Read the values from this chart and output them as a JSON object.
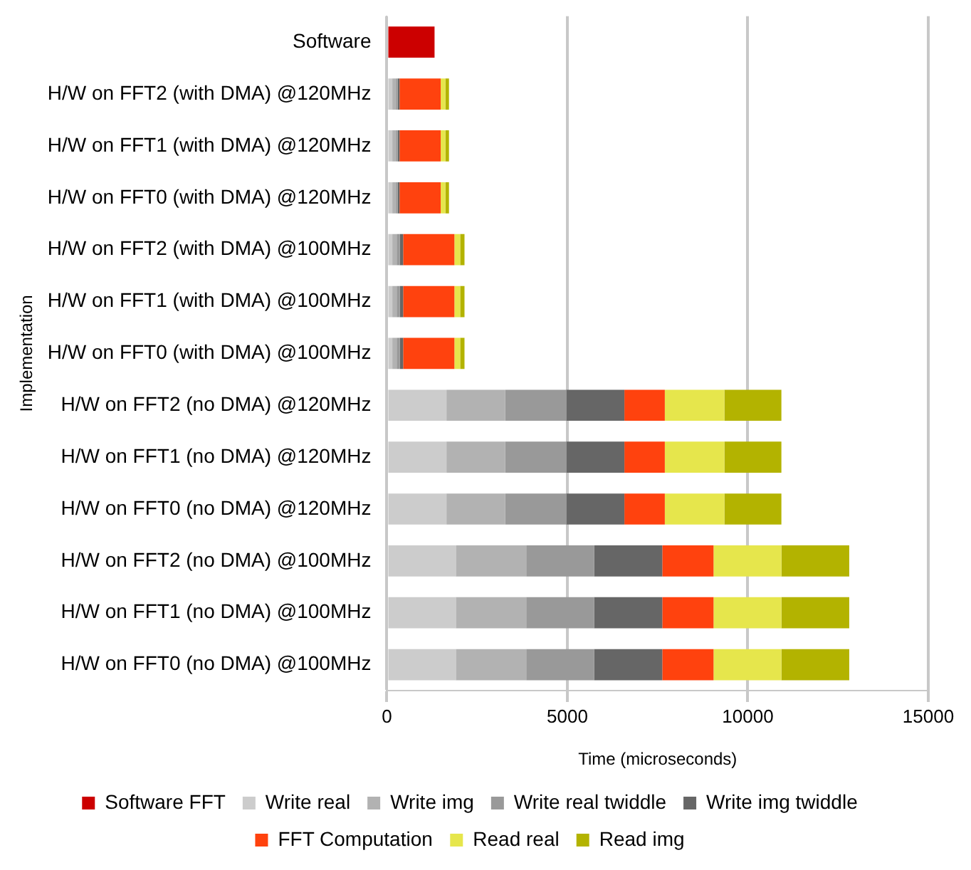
{
  "chart_data": {
    "type": "bar",
    "orientation": "horizontal",
    "stacked": true,
    "xlabel": "Time (microseconds)",
    "ylabel": "Implementation",
    "categories": [
      "Software",
      "H/W on FFT2 (with DMA) @120MHz",
      "H/W on FFT1 (with DMA) @120MHz",
      "H/W on FFT0 (with DMA) @120MHz",
      "H/W on FFT2 (with DMA) @100MHz",
      "H/W on FFT1 (with DMA) @100MHz",
      "H/W on FFT0 (with DMA) @100MHz",
      "H/W on FFT2 (no DMA) @120MHz",
      "H/W on FFT1 (no DMA) @120MHz",
      "H/W on FFT0 (no DMA) @120MHz",
      "H/W on FFT2 (no DMA) @100MHz",
      "H/W on FFT1 (no DMA) @100MHz",
      "H/W on FFT0 (no DMA) @100MHz"
    ],
    "series": [
      {
        "name": "Software FFT",
        "color": "#cc0000",
        "values": [
          1320,
          null,
          null,
          null,
          null,
          null,
          null,
          null,
          null,
          null,
          null,
          null,
          null
        ]
      },
      {
        "name": "Write real",
        "color": "#cccccc",
        "values": [
          null,
          150,
          150,
          150,
          150,
          150,
          150,
          1650,
          1650,
          1650,
          1910,
          1910,
          1910
        ]
      },
      {
        "name": "Write img",
        "color": "#b2b2b2",
        "values": [
          null,
          100,
          100,
          100,
          120,
          120,
          120,
          1630,
          1630,
          1630,
          1950,
          1950,
          1950
        ]
      },
      {
        "name": "Write real twiddle",
        "color": "#999999",
        "values": [
          null,
          50,
          50,
          50,
          90,
          90,
          90,
          1690,
          1690,
          1690,
          1880,
          1880,
          1880
        ]
      },
      {
        "name": "Write img twiddle",
        "color": "#666666",
        "values": [
          null,
          50,
          50,
          50,
          90,
          90,
          90,
          1610,
          1610,
          1610,
          1890,
          1890,
          1890
        ]
      },
      {
        "name": "FFT Computation",
        "color": "#ff420e",
        "values": [
          null,
          1140,
          1140,
          1140,
          1420,
          1420,
          1420,
          1120,
          1120,
          1120,
          1420,
          1420,
          1420
        ]
      },
      {
        "name": "Read real",
        "color": "#e6e64c",
        "values": [
          null,
          130,
          130,
          130,
          160,
          160,
          160,
          1650,
          1650,
          1650,
          1880,
          1880,
          1880
        ]
      },
      {
        "name": "Read img",
        "color": "#b3b300",
        "values": [
          null,
          100,
          100,
          100,
          120,
          120,
          120,
          1580,
          1580,
          1580,
          1880,
          1880,
          1880
        ]
      }
    ],
    "xlim": [
      0,
      15000
    ],
    "xticks": [
      0,
      5000,
      10000,
      15000
    ],
    "grid": "x",
    "legend": "bottom"
  }
}
